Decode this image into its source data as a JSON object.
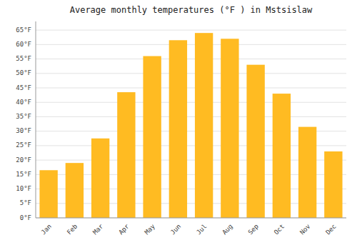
{
  "chart_data": {
    "type": "bar",
    "title": "Average monthly temperatures (°F ) in Mstsislaw",
    "categories": [
      "Jan",
      "Feb",
      "Mar",
      "Apr",
      "May",
      "Jun",
      "Jul",
      "Aug",
      "Sep",
      "Oct",
      "Nov",
      "Dec"
    ],
    "values": [
      16.5,
      19.0,
      27.5,
      43.5,
      56.0,
      61.5,
      64.0,
      62.0,
      53.0,
      43.0,
      31.5,
      23.0
    ],
    "color": "#FFBB22",
    "ylim": [
      0,
      68
    ],
    "yticks": [
      {
        "value": 0,
        "label": "0°F"
      },
      {
        "value": 5,
        "label": "5°F"
      },
      {
        "value": 10,
        "label": "10°F"
      },
      {
        "value": 15,
        "label": "15°F"
      },
      {
        "value": 20,
        "label": "20°F"
      },
      {
        "value": 25,
        "label": "25°F"
      },
      {
        "value": 30,
        "label": "30°F"
      },
      {
        "value": 35,
        "label": "35°F"
      },
      {
        "value": 40,
        "label": "40°F"
      },
      {
        "value": 45,
        "label": "45°F"
      },
      {
        "value": 50,
        "label": "50°F"
      },
      {
        "value": 55,
        "label": "55°F"
      },
      {
        "value": 60,
        "label": "60°F"
      },
      {
        "value": 65,
        "label": "65°F"
      }
    ],
    "grid": true
  }
}
